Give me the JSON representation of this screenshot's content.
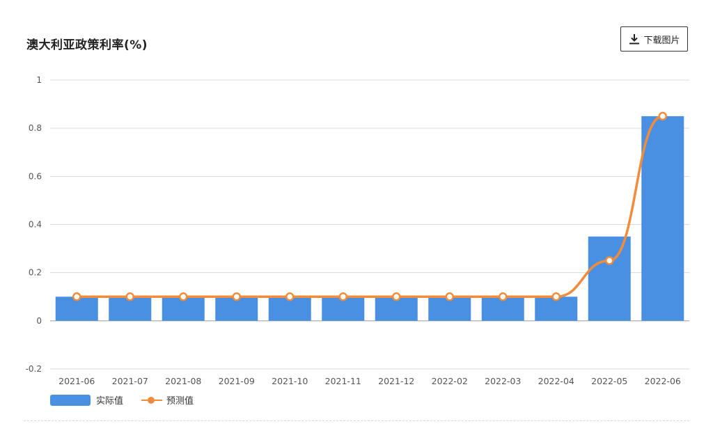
{
  "page": {
    "title": "澳大利亚政策利率(%)",
    "download_label": "下载图片",
    "download_icon": "download-icon"
  },
  "colors": {
    "actual": "#4a90e2",
    "forecast": "#f28c3b",
    "grid": "#d9d9d9",
    "axis_text": "#555555"
  },
  "chart_data": {
    "type": "bar",
    "title": "澳大利亚政策利率(%)",
    "categories": [
      "2021-06",
      "2021-07",
      "2021-08",
      "2021-09",
      "2021-10",
      "2021-11",
      "2021-12",
      "2022-02",
      "2022-03",
      "2022-04",
      "2022-05",
      "2022-06"
    ],
    "series": [
      {
        "name": "实际值",
        "type": "bar",
        "values": [
          0.1,
          0.1,
          0.1,
          0.1,
          0.1,
          0.1,
          0.1,
          0.1,
          0.1,
          0.1,
          0.35,
          0.85
        ]
      },
      {
        "name": "预测值",
        "type": "line",
        "values": [
          0.1,
          0.1,
          0.1,
          0.1,
          0.1,
          0.1,
          0.1,
          0.1,
          0.1,
          0.1,
          0.25,
          0.85
        ]
      }
    ],
    "ylim": [
      -0.2,
      1
    ],
    "yticks": [
      "1",
      "0.8",
      "0.6",
      "0.4",
      "0.2",
      "0",
      "-0.2"
    ],
    "ytick_values": [
      1,
      0.8,
      0.6,
      0.4,
      0.2,
      0,
      -0.2
    ],
    "grid": true,
    "legend": "bottom-left"
  },
  "legend": {
    "actual_label": "实际值",
    "forecast_label": "预测值"
  }
}
